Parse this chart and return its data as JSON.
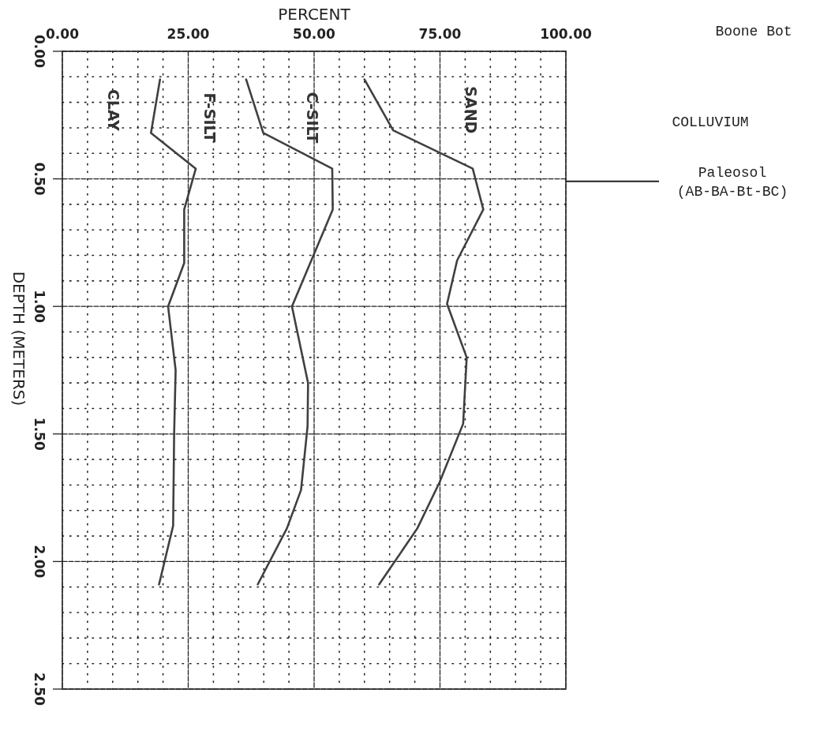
{
  "chart_data": {
    "type": "line",
    "xlabel": "PERCENT",
    "ylabel": "DEPTH (METERS)",
    "xlim": [
      0,
      100
    ],
    "ylim": [
      2.5,
      0
    ],
    "xticks": [
      {
        "value": 0,
        "label": "0.00"
      },
      {
        "value": 5,
        "label": null
      },
      {
        "value": 10,
        "label": null
      },
      {
        "value": 15,
        "label": null
      },
      {
        "value": 20,
        "label": null
      },
      {
        "value": 25,
        "label": "25.00"
      },
      {
        "value": 30,
        "label": null
      },
      {
        "value": 35,
        "label": null
      },
      {
        "value": 40,
        "label": null
      },
      {
        "value": 45,
        "label": null
      },
      {
        "value": 50,
        "label": "50.00"
      },
      {
        "value": 55,
        "label": null
      },
      {
        "value": 60,
        "label": null
      },
      {
        "value": 65,
        "label": null
      },
      {
        "value": 70,
        "label": null
      },
      {
        "value": 75,
        "label": "75.00"
      },
      {
        "value": 80,
        "label": null
      },
      {
        "value": 85,
        "label": null
      },
      {
        "value": 90,
        "label": null
      },
      {
        "value": 95,
        "label": null
      },
      {
        "value": 100,
        "label": "100.00"
      }
    ],
    "yticks": [
      {
        "value": 0,
        "label": "0.00"
      },
      {
        "value": 0.1,
        "label": null
      },
      {
        "value": 0.2,
        "label": null
      },
      {
        "value": 0.3,
        "label": null
      },
      {
        "value": 0.4,
        "label": null
      },
      {
        "value": 0.5,
        "label": "0.50"
      },
      {
        "value": 0.6,
        "label": null
      },
      {
        "value": 0.7,
        "label": null
      },
      {
        "value": 0.8,
        "label": null
      },
      {
        "value": 0.9,
        "label": null
      },
      {
        "value": 1,
        "label": "1.00"
      },
      {
        "value": 1.1,
        "label": null
      },
      {
        "value": 1.2,
        "label": null
      },
      {
        "value": 1.3,
        "label": null
      },
      {
        "value": 1.4,
        "label": null
      },
      {
        "value": 1.5,
        "label": "1.50"
      },
      {
        "value": 1.6,
        "label": null
      },
      {
        "value": 1.7,
        "label": null
      },
      {
        "value": 1.8,
        "label": null
      },
      {
        "value": 1.9,
        "label": null
      },
      {
        "value": 2,
        "label": "2.00"
      },
      {
        "value": 2.1,
        "label": null
      },
      {
        "value": 2.2,
        "label": null
      },
      {
        "value": 2.3,
        "label": null
      },
      {
        "value": 2.4,
        "label": null
      },
      {
        "value": 2.5,
        "label": "2.50"
      }
    ],
    "grid": true,
    "series": [
      {
        "color": "#404040",
        "x": [
          19.4,
          17.6,
          26.5,
          24.2,
          24.2,
          21.0,
          22.5,
          22.2,
          22.0,
          19.2
        ],
        "values": [
          0.11,
          0.32,
          0.46,
          0.62,
          0.83,
          1.0,
          1.25,
          1.5,
          1.86,
          2.09
        ]
      },
      {
        "color": "#404040",
        "x": [
          36.5,
          39.9,
          53.6,
          53.7,
          45.6,
          48.8,
          48.7,
          47.4,
          44.6,
          38.8
        ],
        "values": [
          0.11,
          0.32,
          0.46,
          0.62,
          1.0,
          1.3,
          1.47,
          1.72,
          1.87,
          2.09
        ]
      },
      {
        "color": "#404040",
        "x": [
          60.0,
          65.7,
          81.5,
          83.6,
          78.4,
          76.4,
          80.3,
          79.6,
          74.9,
          70.5,
          62.9
        ],
        "values": [
          0.11,
          0.31,
          0.46,
          0.62,
          0.82,
          0.99,
          1.2,
          1.46,
          1.69,
          1.87,
          2.09
        ]
      }
    ],
    "ref_lines": [
      {
        "axis": "y",
        "value": 0.51,
        "label": "Paleosol\n(AB-BA-Bt-BC)"
      }
    ],
    "annotations": [
      "CLAY",
      "F-SILT",
      "C-SILT",
      "SAND",
      "Boone Bot",
      "COLLUVIUM"
    ]
  }
}
